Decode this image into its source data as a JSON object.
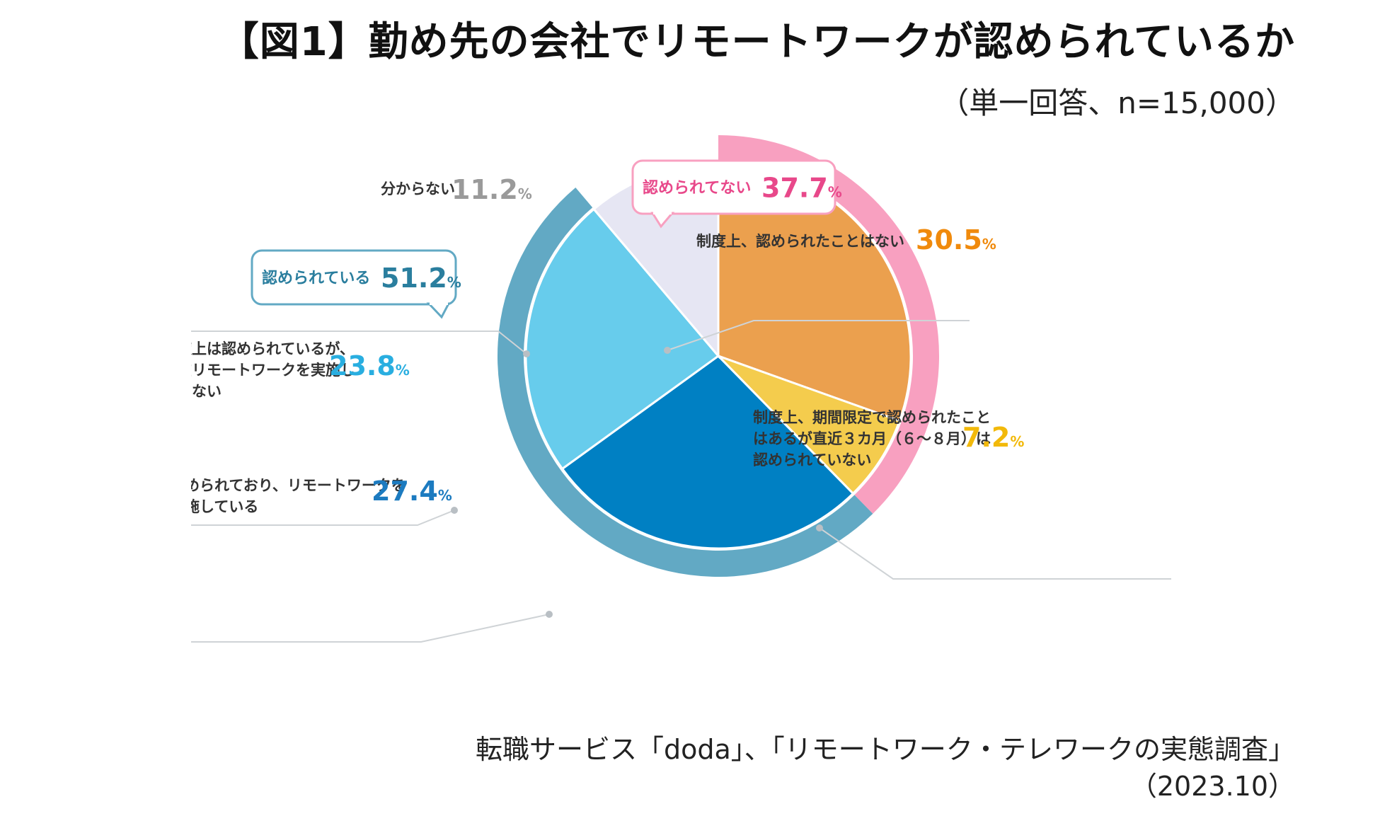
{
  "page": {
    "title": "【図1】勤め先の会社でリモートワークが認められているか",
    "subtitle": "（単一回答、n=15,000）",
    "source": "転職サービス「doda」、「リモートワーク・テレワークの実態調査」",
    "date": "（2023.10）"
  },
  "chart_data": {
    "type": "pie",
    "title": "【図1】勤め先の会社でリモートワークが認められているか",
    "unit": "%",
    "slices": [
      {
        "id": "s1",
        "label_lines": [
          "制度上、認められたことはない"
        ],
        "value": 30.5,
        "value_text": "30.5",
        "color": "#EBA04E",
        "label_color": "#F08A0C",
        "group": "not"
      },
      {
        "id": "s2",
        "label_lines": [
          "制度上、期間限定で認められたこと",
          "はあるが直近３カ月（６～８月）は",
          "認められていない"
        ],
        "value": 7.2,
        "value_text": "7.2",
        "color": "#F4CC4D",
        "label_color": "#F2B90A",
        "group": "not"
      },
      {
        "id": "s3",
        "label_lines": [
          "認められており、リモートワークを",
          "実施している"
        ],
        "value": 27.4,
        "value_text": "27.4",
        "color": "#0080C3",
        "label_color": "#1C7BC0",
        "group": "yes"
      },
      {
        "id": "s4",
        "label_lines": [
          "制度上は認められているが、",
          "現在リモートワークを実施し",
          "ていない"
        ],
        "value": 23.8,
        "value_text": "23.8",
        "color": "#67CCEC",
        "label_color": "#29AEE0",
        "group": "yes"
      },
      {
        "id": "s5",
        "label_lines": [
          "分からない"
        ],
        "value": 11.2,
        "value_text": "11.2",
        "color": "#E6E6F3",
        "label_color": "#9A9A9A",
        "group": "unknown"
      }
    ],
    "groups": [
      {
        "id": "yes",
        "label": "認められている",
        "value": 51.2,
        "value_text": "51.2",
        "color": "#62A9C4",
        "text_color": "#2A7E9E"
      },
      {
        "id": "not",
        "label": "認められてない",
        "value": 37.7,
        "value_text": "37.7",
        "color": "#F8A0C0",
        "text_color": "#E8488A"
      }
    ]
  }
}
